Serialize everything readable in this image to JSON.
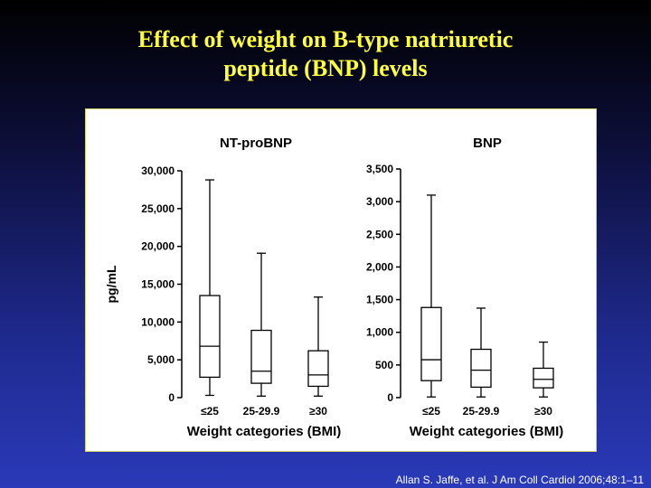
{
  "slide": {
    "title_line1": "Effect of weight on B-type natriuretic",
    "title_line2": "peptide (BNP) levels",
    "citation": "Allan S. Jaffe, et al. J Am Coll Cardiol 2006;48:1–11"
  },
  "colors": {
    "title": "#ffff3c",
    "citation": "#ffffff",
    "plot": "#000000",
    "panel": "#ffffff"
  },
  "chart_data": [
    {
      "type": "box",
      "title": "NT-proBNP",
      "ylabel": "pg/mL",
      "xlabel": "Weight categories (BMI)",
      "ylim": [
        0,
        30000
      ],
      "yticks": [
        0,
        5000,
        10000,
        15000,
        20000,
        25000,
        30000
      ],
      "ytick_labels": [
        "0",
        "5,000",
        "10,000",
        "15,000",
        "20,000",
        "25,000",
        "30,000"
      ],
      "categories": [
        "≤25",
        "25-29.9",
        "≥30"
      ],
      "boxes": [
        {
          "min": 300,
          "q1": 2700,
          "median": 6800,
          "q3": 13500,
          "max": 28800
        },
        {
          "min": 200,
          "q1": 1900,
          "median": 3500,
          "q3": 8900,
          "max": 19100
        },
        {
          "min": 200,
          "q1": 1500,
          "median": 3000,
          "q3": 6200,
          "max": 13300
        }
      ]
    },
    {
      "type": "box",
      "title": "BNP",
      "ylabel": "",
      "xlabel": "Weight categories (BMI)",
      "ylim": [
        0,
        3500
      ],
      "yticks": [
        0,
        500,
        1000,
        1500,
        2000,
        2500,
        3000,
        3500
      ],
      "ytick_labels": [
        "0",
        "500",
        "1,000",
        "1,500",
        "2,000",
        "2,500",
        "3,000",
        "3,500"
      ],
      "categories": [
        "≤25",
        "25-29.9",
        "≥30"
      ],
      "boxes": [
        {
          "min": 10,
          "q1": 260,
          "median": 580,
          "q3": 1380,
          "max": 3100
        },
        {
          "min": 10,
          "q1": 160,
          "median": 420,
          "q3": 740,
          "max": 1370
        },
        {
          "min": 10,
          "q1": 150,
          "median": 280,
          "q3": 450,
          "max": 850
        }
      ]
    }
  ]
}
